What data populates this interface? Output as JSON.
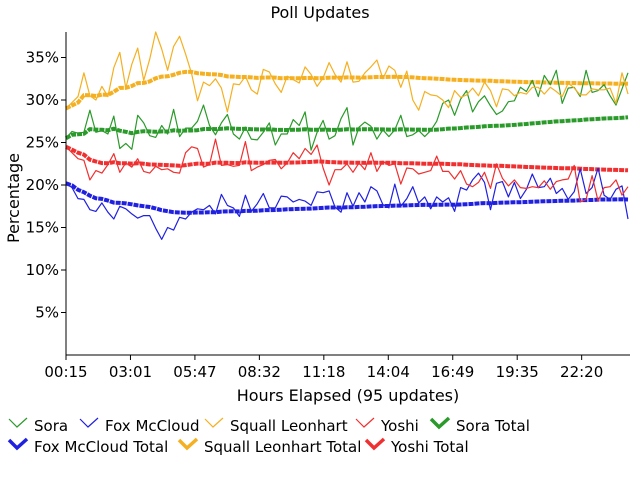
{
  "chart_data": {
    "type": "line",
    "title": "Poll Updates",
    "xlabel": "Hours Elapsed (95 updates)",
    "ylabel": "Percentage",
    "x_tick_labels": [
      "00:15",
      "03:01",
      "05:47",
      "08:32",
      "11:18",
      "14:04",
      "16:49",
      "19:35",
      "22:20"
    ],
    "y_tick_labels": [
      "5%",
      "10%",
      "15%",
      "20%",
      "25%",
      "30%",
      "35%"
    ],
    "y_ticks": [
      5,
      10,
      15,
      20,
      25,
      30,
      35
    ],
    "ylim": [
      0,
      38
    ],
    "x_range_hours": [
      0.25,
      24.5
    ],
    "grid": false,
    "legend_position": "bottom",
    "colors": {
      "sora": "#2a9a2a",
      "fox": "#2020e0",
      "squall": "#f5b021",
      "yoshi": "#f03030"
    },
    "series": [
      {
        "name": "Sora",
        "key": "sora",
        "kind": "update",
        "values": [
          25.5,
          26.3,
          26.1,
          26.2,
          28.8,
          26.2,
          26.4,
          26.0,
          28.1,
          24.3,
          24.9,
          24.2,
          28.2,
          27.3,
          25.8,
          25.6,
          27.0,
          26.0,
          28.9,
          25.7,
          26.7,
          26.7,
          27.5,
          29.4,
          27.0,
          25.9,
          27.3,
          28.3,
          26.0,
          25.4,
          26.8,
          25.4,
          25.3,
          26.2,
          27.3,
          24.7,
          26.0,
          26.0,
          27.7,
          27.0,
          28.6,
          24.1,
          26.2,
          27.6,
          25.4,
          25.8,
          27.8,
          29.1,
          24.7,
          26.8,
          27.4,
          26.9,
          25.4,
          26.5,
          25.7,
          26.5,
          28.2,
          25.7,
          25.9,
          26.4,
          25.7,
          26.4,
          27.5,
          29.6,
          30.0,
          28.2,
          30.1,
          31.1,
          28.6,
          29.8,
          30.5,
          29.3,
          28.3,
          28.7,
          29.8,
          29.9,
          31.5,
          31.0,
          32.3,
          30.4,
          32.9,
          31.8,
          33.5,
          29.6,
          31.4,
          31.5,
          30.4,
          33.5,
          30.9,
          31.1,
          31.8,
          30.5,
          29.4,
          31.3,
          33.2
        ]
      },
      {
        "name": "Fox McCloud",
        "key": "fox",
        "kind": "update",
        "values": [
          20.2,
          19.7,
          18.4,
          18.3,
          17.1,
          16.9,
          17.9,
          16.8,
          16.0,
          17.5,
          17.2,
          16.6,
          16.1,
          16.4,
          16.4,
          14.9,
          13.6,
          15.0,
          14.7,
          16.2,
          16.0,
          16.8,
          17.2,
          17.1,
          17.6,
          16.6,
          18.9,
          17.6,
          17.3,
          16.3,
          18.8,
          16.9,
          17.8,
          19.0,
          17.3,
          17.3,
          18.7,
          18.6,
          18.0,
          18.3,
          18.1,
          17.6,
          19.2,
          19.1,
          19.3,
          17.4,
          16.8,
          19.1,
          17.5,
          19.1,
          18.0,
          19.8,
          19.3,
          17.7,
          17.3,
          20.1,
          17.5,
          18.4,
          19.8,
          17.9,
          18.6,
          17.2,
          18.6,
          18.0,
          18.5,
          16.9,
          19.7,
          19.4,
          20.6,
          21.4,
          20.3,
          17.1,
          20.2,
          20.4,
          18.6,
          20.3,
          18.4,
          19.5,
          21.3,
          19.7,
          19.8,
          20.8,
          19.0,
          19.6,
          18.3,
          19.2,
          21.9,
          19.0,
          19.7,
          22.0,
          18.8,
          18.3,
          19.5,
          19.9,
          16.0
        ]
      },
      {
        "name": "Squall Leonhart",
        "key": "squall",
        "kind": "update",
        "values": [
          29.0,
          29.7,
          30.4,
          33.2,
          30.5,
          30.0,
          31.6,
          30.4,
          33.8,
          35.6,
          31.4,
          34.2,
          36.1,
          32.3,
          34.8,
          38.0,
          36.0,
          33.5,
          36.3,
          37.5,
          35.4,
          33.1,
          29.9,
          32.1,
          31.7,
          32.5,
          31.4,
          28.6,
          31.9,
          31.8,
          32.8,
          31.2,
          30.7,
          33.6,
          33.3,
          31.9,
          30.9,
          32.8,
          32.4,
          32.0,
          33.9,
          33.0,
          31.6,
          32.6,
          34.4,
          33.0,
          32.1,
          34.5,
          32.1,
          32.2,
          33.2,
          33.9,
          34.7,
          32.5,
          34.0,
          33.5,
          31.5,
          33.4,
          30.0,
          28.8,
          31.0,
          30.6,
          30.5,
          30.0,
          29.1,
          31.1,
          30.3,
          30.6,
          31.4,
          30.5,
          32.1,
          31.1,
          29.2,
          31.3,
          31.2,
          30.5,
          30.9,
          30.7,
          31.5,
          31.5,
          30.7,
          31.5,
          31.0,
          30.4,
          32.0,
          31.4,
          30.6,
          30.6,
          31.3,
          31.2,
          31.2,
          31.4,
          29.6,
          33.2,
          30.7
        ]
      },
      {
        "name": "Yoshi",
        "key": "yoshi",
        "kind": "update",
        "values": [
          24.5,
          23.8,
          23.1,
          22.9,
          20.6,
          21.7,
          21.4,
          22.4,
          23.7,
          21.5,
          22.6,
          22.1,
          23.1,
          21.6,
          21.4,
          22.2,
          21.8,
          21.9,
          21.5,
          21.4,
          23.8,
          24.5,
          24.3,
          22.1,
          22.4,
          25.4,
          22.3,
          22.4,
          22.2,
          22.3,
          25.1,
          21.7,
          22.1,
          22.4,
          22.9,
          23.0,
          21.9,
          22.6,
          23.8,
          23.1,
          24.3,
          23.6,
          24.7,
          22.0,
          20.0,
          21.8,
          21.8,
          22.5,
          21.5,
          22.6,
          21.8,
          23.8,
          21.6,
          22.8,
          22.3,
          22.5,
          20.1,
          22.0,
          21.9,
          21.3,
          21.5,
          21.7,
          23.4,
          21.6,
          21.6,
          20.7,
          21.7,
          20.1,
          19.8,
          20.3,
          21.5,
          19.6,
          22.5,
          20.8,
          19.9,
          20.6,
          19.7,
          19.6,
          19.8,
          19.7,
          20.5,
          19.5,
          20.4,
          20.6,
          20.7,
          22.3,
          18.0,
          18.3,
          21.1,
          18.1,
          19.7,
          19.8,
          20.6,
          18.8,
          19.8
        ]
      },
      {
        "name": "Sora Total",
        "key": "sora",
        "kind": "total",
        "values": [
          25.5,
          25.9,
          25.97,
          26.02,
          26.58,
          26.52,
          26.5,
          26.44,
          26.62,
          26.39,
          26.26,
          26.09,
          26.25,
          26.33,
          26.3,
          26.26,
          26.3,
          26.29,
          26.43,
          26.39,
          26.4,
          26.41,
          26.45,
          26.58,
          26.6,
          26.58,
          26.61,
          26.67,
          26.64,
          26.6,
          26.61,
          26.57,
          26.54,
          26.53,
          26.55,
          26.5,
          26.48,
          26.47,
          26.5,
          26.51,
          26.57,
          26.5,
          26.49,
          26.52,
          26.5,
          26.48,
          26.51,
          26.57,
          26.53,
          26.54,
          26.56,
          26.57,
          26.54,
          26.54,
          26.52,
          26.52,
          26.55,
          26.53,
          26.52,
          26.52,
          26.5,
          26.5,
          26.52,
          26.57,
          26.63,
          26.65,
          26.7,
          26.77,
          26.8,
          26.84,
          26.9,
          26.94,
          26.96,
          26.99,
          27.03,
          27.07,
          27.13,
          27.18,
          27.25,
          27.29,
          27.36,
          27.41,
          27.48,
          27.51,
          27.56,
          27.6,
          27.64,
          27.71,
          27.74,
          27.78,
          27.82,
          27.85,
          27.87,
          27.91,
          27.97
        ]
      },
      {
        "name": "Fox McCloud Total",
        "key": "fox",
        "kind": "total",
        "values": [
          20.2,
          19.95,
          19.43,
          19.15,
          18.74,
          18.43,
          18.36,
          18.17,
          17.93,
          17.89,
          17.83,
          17.73,
          17.6,
          17.51,
          17.41,
          17.25,
          17.04,
          16.92,
          16.8,
          16.77,
          16.74,
          16.74,
          16.76,
          16.77,
          16.8,
          16.79,
          16.87,
          16.9,
          16.91,
          16.89,
          16.95,
          16.95,
          16.98,
          17.04,
          17.05,
          17.06,
          17.1,
          17.14,
          17.16,
          17.19,
          17.21,
          17.22,
          17.27,
          17.31,
          17.35,
          17.35,
          17.34,
          17.38,
          17.38,
          17.42,
          17.43,
          17.48,
          17.52,
          17.53,
          17.53,
          17.58,
          17.58,
          17.6,
          17.64,
          17.65,
          17.67,
          17.66,
          17.68,
          17.68,
          17.69,
          17.68,
          17.71,
          17.74,
          17.78,
          17.83,
          17.87,
          17.86,
          17.89,
          17.93,
          17.94,
          17.97,
          17.98,
          18.0,
          18.04,
          18.06,
          18.08,
          18.11,
          18.12,
          18.14,
          18.15,
          18.16,
          18.21,
          18.22,
          18.23,
          18.28,
          18.29,
          18.29,
          18.3,
          18.32,
          18.29
        ]
      },
      {
        "name": "Squall Leonhart Total",
        "key": "squall",
        "kind": "total",
        "values": [
          29.0,
          29.35,
          29.7,
          30.58,
          30.56,
          30.47,
          30.63,
          30.6,
          30.96,
          31.42,
          31.42,
          31.65,
          31.99,
          32.01,
          32.19,
          32.55,
          32.75,
          32.79,
          32.97,
          33.2,
          33.31,
          33.3,
          33.15,
          33.09,
          33.03,
          33.01,
          32.94,
          32.78,
          32.75,
          32.71,
          32.71,
          32.66,
          32.6,
          32.63,
          32.65,
          32.63,
          32.57,
          32.58,
          32.57,
          32.56,
          32.59,
          32.6,
          32.57,
          32.58,
          32.62,
          32.63,
          32.62,
          32.66,
          32.65,
          32.64,
          32.65,
          32.67,
          32.71,
          32.7,
          32.72,
          32.73,
          32.7,
          32.71,
          32.66,
          32.6,
          32.57,
          32.54,
          32.51,
          32.47,
          32.41,
          32.38,
          32.35,
          32.33,
          32.31,
          32.28,
          32.28,
          32.26,
          32.21,
          32.2,
          32.18,
          32.15,
          32.13,
          32.11,
          32.1,
          32.08,
          32.06,
          32.05,
          32.04,
          32.01,
          32.01,
          32.0,
          31.98,
          31.97,
          31.96,
          31.95,
          31.94,
          31.94,
          31.92,
          31.93,
          31.92
        ]
      },
      {
        "name": "Yoshi Total",
        "key": "yoshi",
        "kind": "total",
        "values": [
          24.5,
          24.15,
          23.8,
          23.58,
          22.98,
          22.77,
          22.58,
          22.56,
          22.68,
          22.56,
          22.56,
          22.52,
          22.56,
          22.49,
          22.41,
          22.4,
          22.37,
          22.34,
          22.3,
          22.26,
          22.34,
          22.44,
          22.52,
          22.51,
          22.51,
          22.63,
          22.62,
          22.61,
          22.59,
          22.58,
          22.67,
          22.64,
          22.62,
          22.62,
          22.63,
          22.64,
          22.62,
          22.62,
          22.65,
          22.66,
          22.7,
          22.72,
          22.77,
          22.75,
          22.69,
          22.67,
          22.65,
          22.65,
          22.62,
          22.62,
          22.6,
          22.63,
          22.61,
          22.61,
          22.61,
          22.61,
          22.56,
          22.56,
          22.55,
          22.53,
          22.51,
          22.5,
          22.51,
          22.49,
          22.47,
          22.44,
          22.43,
          22.39,
          22.35,
          22.32,
          22.31,
          22.27,
          22.27,
          22.25,
          22.21,
          22.19,
          22.16,
          22.12,
          22.1,
          22.07,
          22.05,
          22.02,
          22.0,
          21.98,
          21.96,
          21.97,
          21.92,
          21.88,
          21.87,
          21.82,
          21.81,
          21.79,
          21.78,
          21.75,
          21.73
        ]
      }
    ]
  }
}
